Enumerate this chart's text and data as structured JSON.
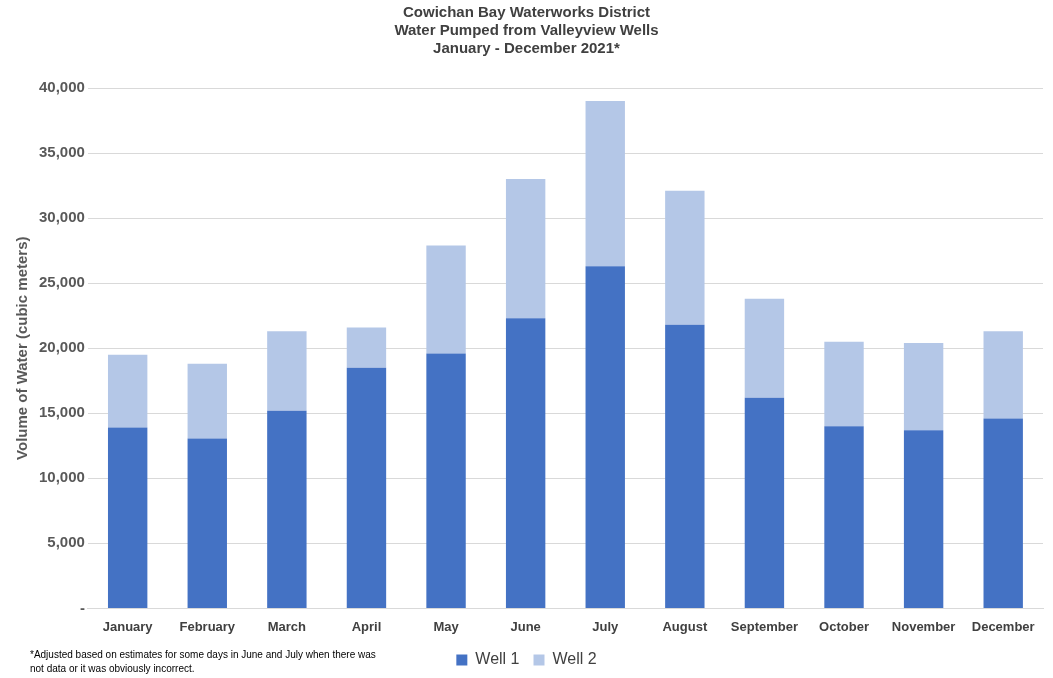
{
  "chart_data": {
    "type": "bar",
    "title": "Cowichan Bay Waterworks District\nWater Pumped from Valleyview Wells\nJanuary - December 2021*",
    "ylabel": "Volume of Water (cubic meters)",
    "categories": [
      "January",
      "February",
      "March",
      "April",
      "May",
      "June",
      "July",
      "August",
      "September",
      "October",
      "November",
      "December"
    ],
    "stacked": true,
    "series": [
      {
        "name": "Well 1",
        "color": "#4472c4",
        "values": [
          13900,
          13050,
          15200,
          18500,
          19600,
          22300,
          26300,
          21800,
          16200,
          14000,
          13700,
          14600
        ]
      },
      {
        "name": "Well 2",
        "color": "#b4c7e7",
        "values": [
          5600,
          5750,
          6100,
          3100,
          8300,
          10700,
          12700,
          10300,
          7600,
          6500,
          6700,
          6700
        ]
      }
    ],
    "ylim": [
      0,
      40000
    ],
    "yticks": [
      {
        "value": 0,
        "label": "-"
      },
      {
        "value": 5000,
        "label": "5,000"
      },
      {
        "value": 10000,
        "label": "10,000"
      },
      {
        "value": 15000,
        "label": "15,000"
      },
      {
        "value": 20000,
        "label": "20,000"
      },
      {
        "value": 25000,
        "label": "25,000"
      },
      {
        "value": 30000,
        "label": "30,000"
      },
      {
        "value": 35000,
        "label": "35,000"
      },
      {
        "value": 40000,
        "label": "40,000"
      }
    ],
    "grid": "y",
    "legend": "bottom",
    "annotations": [
      "*Adjusted based on estimates for some days in June and July when there was not data or it was obviously incorrect."
    ]
  }
}
